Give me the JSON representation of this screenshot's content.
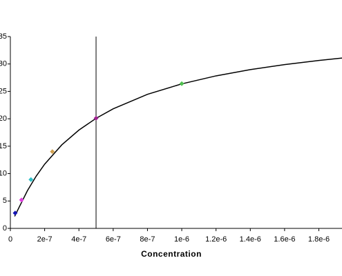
{
  "chart_data": {
    "type": "scatter",
    "xlabel": "Concentration",
    "points": {
      "x": [
        2.8e-08,
        6.5e-08,
        1.2e-07,
        2.45e-07,
        5e-07,
        1e-06
      ],
      "values": [
        2.8,
        5.2,
        8.9,
        14.0,
        20.1,
        26.4
      ],
      "colors": [
        "#1414b4",
        "#e040e0",
        "#30c0c8",
        "#d0a050",
        "#a02090",
        "#50c050"
      ]
    },
    "fit": {
      "color": "#000000",
      "x": [
        2.5e-08,
        5e-08,
        1e-07,
        1.5e-07,
        2e-07,
        3e-07,
        4e-07,
        5e-07,
        6e-07,
        8e-07,
        1e-06,
        1.2e-06,
        1.4e-06,
        1.6e-06,
        1.8e-06,
        1.935e-06
      ],
      "values": [
        2.2,
        3.79,
        6.91,
        9.5,
        11.71,
        15.24,
        17.94,
        20.08,
        21.82,
        24.46,
        26.37,
        27.83,
        28.97,
        29.88,
        30.64,
        31.08
      ]
    },
    "reference_x": 5e-07,
    "xlim": [
      0,
      1.935e-06
    ],
    "ylim": [
      0,
      35
    ],
    "xticks": [
      0,
      {
        "value": 2e-07,
        "label": "2e-7"
      },
      {
        "value": 4e-07,
        "label": "4e-7"
      },
      {
        "value": 6e-07,
        "label": "6e-7"
      },
      {
        "value": 8e-07,
        "label": "8e-7"
      },
      {
        "value": 1e-06,
        "label": "1e-6"
      },
      {
        "value": 1.2e-06,
        "label": "1.2e-6"
      },
      {
        "value": 1.4e-06,
        "label": "1.4e-6"
      },
      {
        "value": 1.6e-06,
        "label": "1.6e-6"
      },
      {
        "value": 1.8e-06,
        "label": "1.8e-6"
      }
    ],
    "yticks": [
      0,
      5,
      10,
      15,
      20,
      25,
      30,
      35
    ]
  }
}
